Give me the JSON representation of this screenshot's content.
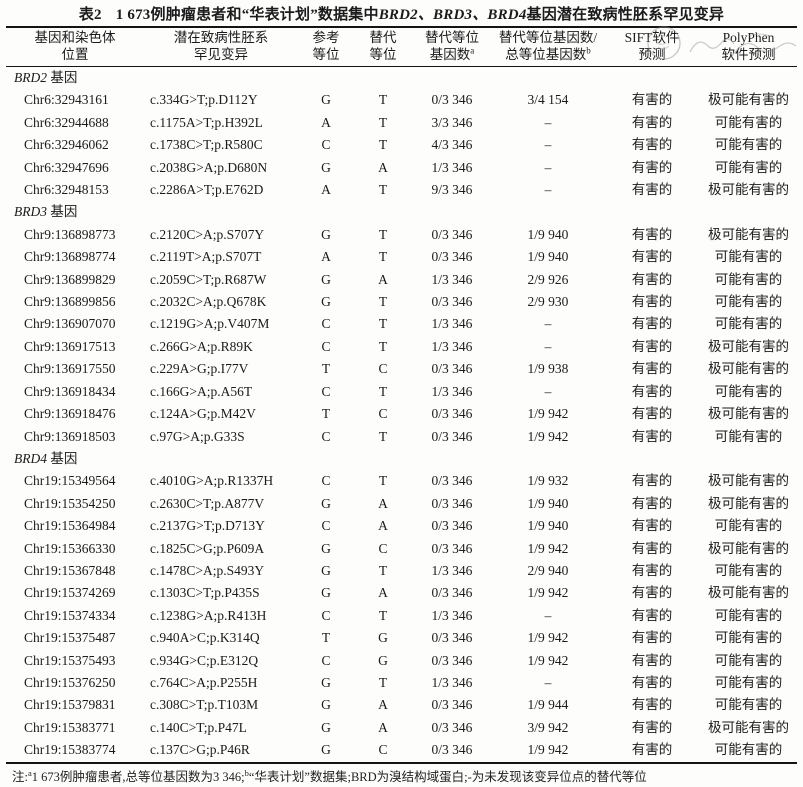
{
  "title": {
    "label": "表2",
    "prefix": "1 673例肿瘤患者和“华表计划”数据集中",
    "genes": "BRD2、BRD3、BRD4",
    "suffix": "基因潜在致病性胚系罕见变异"
  },
  "columns": [
    {
      "line1": "基因和染色体",
      "line2": "位置",
      "sup": ""
    },
    {
      "line1": "潜在致病性胚系",
      "line2": "罕见变异",
      "sup": ""
    },
    {
      "line1": "参考",
      "line2": "等位",
      "sup": ""
    },
    {
      "line1": "替代",
      "line2": "等位",
      "sup": ""
    },
    {
      "line1": "替代等位",
      "line2": "基因数",
      "sup": "a"
    },
    {
      "line1": "替代等位基因数/",
      "line2": "总等位基因数",
      "sup": "b"
    },
    {
      "line1": "SIFT软件",
      "line2": "预测",
      "sup": ""
    },
    {
      "line1": "PolyPhen",
      "line2": "软件预测",
      "sup": ""
    }
  ],
  "sections": [
    {
      "gene": "BRD2",
      "label_suffix": "基因",
      "rows": [
        {
          "pos": "Chr6:32943161",
          "variant": "c.334G>T;p.D112Y",
          "ref": "G",
          "alt": "T",
          "an": "0/3 346",
          "at": "3/4 154",
          "sift": "有害的",
          "pp": "极可能有害的"
        },
        {
          "pos": "Chr6:32944688",
          "variant": "c.1175A>T;p.H392L",
          "ref": "A",
          "alt": "T",
          "an": "3/3 346",
          "at": "–",
          "sift": "有害的",
          "pp": "可能有害的"
        },
        {
          "pos": "Chr6:32946062",
          "variant": "c.1738C>T;p.R580C",
          "ref": "C",
          "alt": "T",
          "an": "4/3 346",
          "at": "–",
          "sift": "有害的",
          "pp": "可能有害的"
        },
        {
          "pos": "Chr6:32947696",
          "variant": "c.2038G>A;p.D680N",
          "ref": "G",
          "alt": "A",
          "an": "1/3 346",
          "at": "–",
          "sift": "有害的",
          "pp": "可能有害的"
        },
        {
          "pos": "Chr6:32948153",
          "variant": "c.2286A>T;p.E762D",
          "ref": "A",
          "alt": "T",
          "an": "9/3 346",
          "at": "–",
          "sift": "有害的",
          "pp": "极可能有害的"
        }
      ]
    },
    {
      "gene": "BRD3",
      "label_suffix": "基因",
      "rows": [
        {
          "pos": "Chr9:136898773",
          "variant": "c.2120C>A;p.S707Y",
          "ref": "G",
          "alt": "T",
          "an": "0/3 346",
          "at": "1/9 940",
          "sift": "有害的",
          "pp": "极可能有害的"
        },
        {
          "pos": "Chr9:136898774",
          "variant": "c.2119T>A;p.S707T",
          "ref": "A",
          "alt": "T",
          "an": "0/3 346",
          "at": "1/9 940",
          "sift": "有害的",
          "pp": "可能有害的"
        },
        {
          "pos": "Chr9:136899829",
          "variant": "c.2059C>T;p.R687W",
          "ref": "G",
          "alt": "A",
          "an": "1/3 346",
          "at": "2/9 926",
          "sift": "有害的",
          "pp": "可能有害的"
        },
        {
          "pos": "Chr9:136899856",
          "variant": "c.2032C>A;p.Q678K",
          "ref": "G",
          "alt": "T",
          "an": "0/3 346",
          "at": "2/9 930",
          "sift": "有害的",
          "pp": "可能有害的"
        },
        {
          "pos": "Chr9:136907070",
          "variant": "c.1219G>A;p.V407M",
          "ref": "C",
          "alt": "T",
          "an": "1/3 346",
          "at": "–",
          "sift": "有害的",
          "pp": "可能有害的"
        },
        {
          "pos": "Chr9:136917513",
          "variant": "c.266G>A;p.R89K",
          "ref": "C",
          "alt": "T",
          "an": "1/3 346",
          "at": "–",
          "sift": "有害的",
          "pp": "极可能有害的"
        },
        {
          "pos": "Chr9:136917550",
          "variant": "c.229A>G;p.I77V",
          "ref": "T",
          "alt": "C",
          "an": "0/3 346",
          "at": "1/9 938",
          "sift": "有害的",
          "pp": "极可能有害的"
        },
        {
          "pos": "Chr9:136918434",
          "variant": "c.166G>A;p.A56T",
          "ref": "C",
          "alt": "T",
          "an": "1/3 346",
          "at": "–",
          "sift": "有害的",
          "pp": "可能有害的"
        },
        {
          "pos": "Chr9:136918476",
          "variant": "c.124A>G;p.M42V",
          "ref": "T",
          "alt": "C",
          "an": "0/3 346",
          "at": "1/9 942",
          "sift": "有害的",
          "pp": "极可能有害的"
        },
        {
          "pos": "Chr9:136918503",
          "variant": "c.97G>A;p.G33S",
          "ref": "C",
          "alt": "T",
          "an": "0/3 346",
          "at": "1/9 942",
          "sift": "有害的",
          "pp": "可能有害的"
        }
      ]
    },
    {
      "gene": "BRD4",
      "label_suffix": "基因",
      "rows": [
        {
          "pos": "Chr19:15349564",
          "variant": "c.4010G>A;p.R1337H",
          "ref": "C",
          "alt": "T",
          "an": "0/3 346",
          "at": "1/9 932",
          "sift": "有害的",
          "pp": "极可能有害的"
        },
        {
          "pos": "Chr19:15354250",
          "variant": "c.2630C>T;p.A877V",
          "ref": "G",
          "alt": "A",
          "an": "0/3 346",
          "at": "1/9 940",
          "sift": "有害的",
          "pp": "极可能有害的"
        },
        {
          "pos": "Chr19:15364984",
          "variant": "c.2137G>T;p.D713Y",
          "ref": "C",
          "alt": "A",
          "an": "0/3 346",
          "at": "1/9 940",
          "sift": "有害的",
          "pp": "可能有害的"
        },
        {
          "pos": "Chr19:15366330",
          "variant": "c.1825C>G;p.P609A",
          "ref": "G",
          "alt": "C",
          "an": "0/3 346",
          "at": "1/9 942",
          "sift": "有害的",
          "pp": "极可能有害的"
        },
        {
          "pos": "Chr19:15367848",
          "variant": "c.1478C>A;p.S493Y",
          "ref": "G",
          "alt": "T",
          "an": "1/3 346",
          "at": "2/9 940",
          "sift": "有害的",
          "pp": "可能有害的"
        },
        {
          "pos": "Chr19:15374269",
          "variant": "c.1303C>T;p.P435S",
          "ref": "G",
          "alt": "A",
          "an": "0/3 346",
          "at": "1/9 942",
          "sift": "有害的",
          "pp": "极可能有害的"
        },
        {
          "pos": "Chr19:15374334",
          "variant": "c.1238G>A;p.R413H",
          "ref": "C",
          "alt": "T",
          "an": "1/3 346",
          "at": "–",
          "sift": "有害的",
          "pp": "可能有害的"
        },
        {
          "pos": "Chr19:15375487",
          "variant": "c.940A>C;p.K314Q",
          "ref": "T",
          "alt": "G",
          "an": "0/3 346",
          "at": "1/9 942",
          "sift": "有害的",
          "pp": "可能有害的"
        },
        {
          "pos": "Chr19:15375493",
          "variant": "c.934G>C;p.E312Q",
          "ref": "C",
          "alt": "G",
          "an": "0/3 346",
          "at": "1/9 942",
          "sift": "有害的",
          "pp": "可能有害的"
        },
        {
          "pos": "Chr19:15376250",
          "variant": "c.764C>A;p.P255H",
          "ref": "G",
          "alt": "T",
          "an": "1/3 346",
          "at": "–",
          "sift": "有害的",
          "pp": "可能有害的"
        },
        {
          "pos": "Chr19:15379831",
          "variant": "c.308C>T;p.T103M",
          "ref": "G",
          "alt": "A",
          "an": "0/3 346",
          "at": "1/9 944",
          "sift": "有害的",
          "pp": "可能有害的"
        },
        {
          "pos": "Chr19:15383771",
          "variant": "c.140C>T;p.P47L",
          "ref": "G",
          "alt": "A",
          "an": "0/3 346",
          "at": "3/9 942",
          "sift": "有害的",
          "pp": "极可能有害的"
        },
        {
          "pos": "Chr19:15383774",
          "variant": "c.137C>G;p.P46R",
          "ref": "G",
          "alt": "C",
          "an": "0/3 346",
          "at": "1/9 942",
          "sift": "有害的",
          "pp": "可能有害的"
        }
      ]
    }
  ],
  "footnote": {
    "parts": [
      {
        "t": "注:"
      },
      {
        "s": "a"
      },
      {
        "t": "1 673例肿瘤患者,总等位基因数为3 346;"
      },
      {
        "s": "b"
      },
      {
        "t": "“华表计划”数据集;BRD为溴结构域蛋白;-为未发现该变异位点的替代等位"
      }
    ]
  },
  "watermark": {
    "type": "faint-stamp-and-signature"
  }
}
